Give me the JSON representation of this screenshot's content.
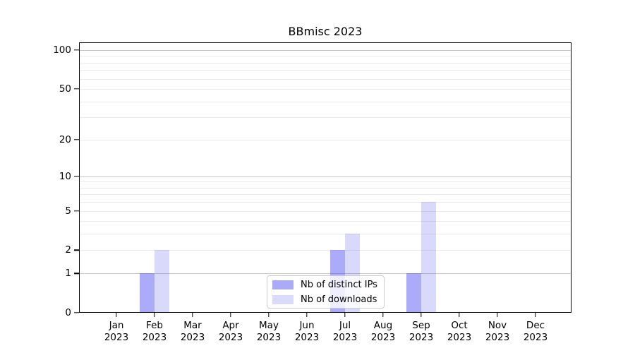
{
  "chart_data": {
    "type": "bar",
    "title": "BBmisc 2023",
    "categories": [
      "Jan 2023",
      "Feb 2023",
      "Mar 2023",
      "Apr 2023",
      "May 2023",
      "Jun 2023",
      "Jul 2023",
      "Aug 2023",
      "Sep 2023",
      "Oct 2023",
      "Nov 2023",
      "Dec 2023"
    ],
    "series": [
      {
        "name": "Nb of distinct IPs",
        "fill": "rgba(45,45,240,0.40)",
        "swatch": "#aaaaf7",
        "values": [
          0,
          1,
          0,
          0,
          0,
          0,
          2,
          0,
          1,
          0,
          0,
          0
        ]
      },
      {
        "name": "Nb of downloads",
        "fill": "rgba(45,45,240,0.18)",
        "swatch": "#dadaf9",
        "values": [
          0,
          2,
          0,
          0,
          0,
          0,
          3,
          0,
          6,
          0,
          0,
          0
        ]
      }
    ],
    "xlabel": "",
    "ylabel": "",
    "yscale": "log1p",
    "ylim": [
      0,
      115
    ],
    "yticks": [
      0,
      1,
      2,
      5,
      10,
      20,
      50,
      100
    ],
    "gridlines": {
      "decade_values": [
        1,
        10,
        100
      ],
      "minor_values": [
        2,
        3,
        4,
        5,
        6,
        7,
        8,
        9,
        20,
        30,
        40,
        50,
        60,
        70,
        80,
        90
      ],
      "decade_color": "#c6c6c6",
      "minor_color": "#eaeaea"
    },
    "grid_on": true,
    "legend_position": "lower center",
    "axis_color": "#000000",
    "background_color": "#ffffff"
  }
}
